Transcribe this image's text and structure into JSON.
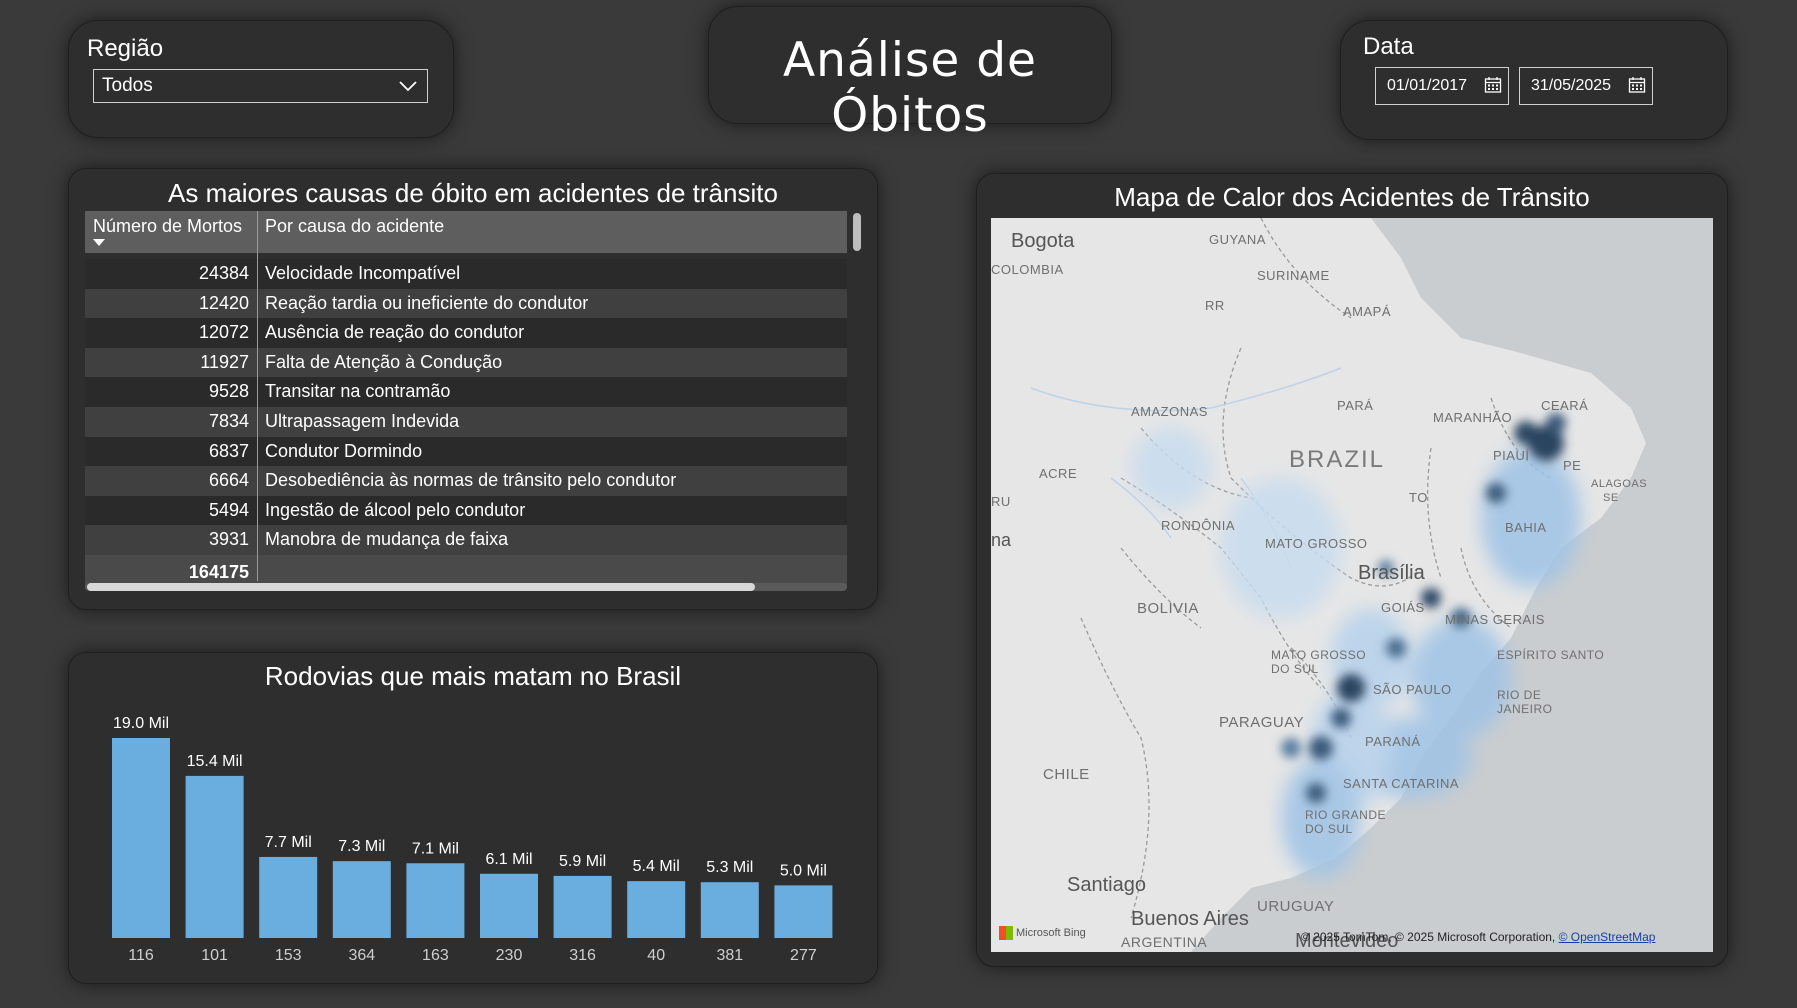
{
  "region_slicer": {
    "label": "Região",
    "selected": "Todos"
  },
  "page_title": "Análise de Óbitos",
  "date_slicer": {
    "label": "Data",
    "start": "01/01/2017",
    "end": "31/05/2025"
  },
  "causes_table": {
    "title": "As maiores causas de óbito em acidentes de trânsito",
    "col_deaths": "Número de Mortos",
    "col_cause": "Por causa do acidente",
    "rows": [
      {
        "deaths": "24384",
        "cause": "Velocidade Incompatível"
      },
      {
        "deaths": "12420",
        "cause": "Reação tardia ou ineficiente do condutor"
      },
      {
        "deaths": "12072",
        "cause": "Ausência de reação do condutor"
      },
      {
        "deaths": "11927",
        "cause": "Falta de Atenção à Condução"
      },
      {
        "deaths": "9528",
        "cause": "Transitar na contramão"
      },
      {
        "deaths": "7834",
        "cause": "Ultrapassagem Indevida"
      },
      {
        "deaths": "6837",
        "cause": "Condutor Dormindo"
      },
      {
        "deaths": "6664",
        "cause": "Desobediência às normas de trânsito pelo condutor"
      },
      {
        "deaths": "5494",
        "cause": "Ingestão de álcool pelo condutor"
      },
      {
        "deaths": "3931",
        "cause": "Manobra de mudança de faixa"
      }
    ],
    "total": "164175"
  },
  "chart_data": {
    "type": "bar",
    "title": "Rodovias que mais matam no Brasil",
    "categories": [
      "116",
      "101",
      "153",
      "364",
      "163",
      "230",
      "316",
      "40",
      "381",
      "277"
    ],
    "values": [
      19.0,
      15.4,
      7.7,
      7.3,
      7.1,
      6.1,
      5.9,
      5.4,
      5.3,
      5.0
    ],
    "data_labels": [
      "19.0 Mil",
      "15.4 Mil",
      "7.7 Mil",
      "7.3 Mil",
      "7.1 Mil",
      "6.1 Mil",
      "5.9 Mil",
      "5.4 Mil",
      "5.3 Mil",
      "5.0 Mil"
    ],
    "bar_color": "#6aaee0",
    "unit": "Mil",
    "xlabel": "",
    "ylabel": ""
  },
  "heat_map": {
    "title": "Mapa de Calor dos Acidentes de Trânsito",
    "labels": {
      "bogota": "Bogota",
      "colombia": "COLOMBIA",
      "guyana": "GUYANA",
      "suriname": "SURINAME",
      "rr": "RR",
      "amapa": "AMAPÁ",
      "amazonas": "AMAZONAS",
      "para": "PARÁ",
      "maranhao": "MARANHÃO",
      "ceara": "CEARÁ",
      "brazil": "BRAZIL",
      "acre": "ACRE",
      "piaui": "PIAUÍ",
      "pe": "PE",
      "alagoas": "ALAGOAS",
      "se": "SE",
      "to": "TO",
      "rondonia": "RONDÔNIA",
      "bahia": "BAHIA",
      "mato_grosso": "MATO GROSSO",
      "brasilia": "Brasília",
      "goias": "GOIÁS",
      "bolivia": "BOLIVIA",
      "minas_gerais": "MINAS GERAIS",
      "ms": "MATO GROSSO DO SUL",
      "espirito_santo": "ESPÍRITO SANTO",
      "sao_paulo": "SÃO PAULO",
      "rio": "RIO DE JANEIRO",
      "paraguay": "PARAGUAY",
      "parana": "PARANÁ",
      "chile": "CHILE",
      "santa_catarina": "SANTA CATARINA",
      "rio_grande": "RIO GRANDE DO SUL",
      "santiago": "Santiago",
      "uruguay": "URUGUAY",
      "buenos_aires": "Buenos Aires",
      "argentina": "ARGENTINA",
      "montevideo": "Montevideo",
      "ru": "RU",
      "na": "na"
    },
    "attribution": "© 2025 TomTom, © 2025 Microsoft Corporation,",
    "attribution_link": "© OpenStreetMap",
    "provider": "Microsoft Bing"
  }
}
